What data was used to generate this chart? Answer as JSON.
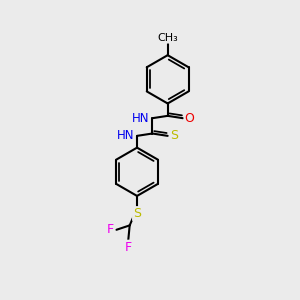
{
  "bg_color": "#ebebeb",
  "atom_colors": {
    "C": "#000000",
    "H": "#707070",
    "N": "#0000ee",
    "O": "#ee0000",
    "S_thio": "#bbbb00",
    "S_thioether": "#bbbb00",
    "F": "#ee00ee"
  },
  "bond_color": "#000000",
  "bond_width": 1.5,
  "figsize": [
    3.0,
    3.0
  ],
  "dpi": 100,
  "xlim": [
    0,
    10
  ],
  "ylim": [
    0,
    10
  ]
}
